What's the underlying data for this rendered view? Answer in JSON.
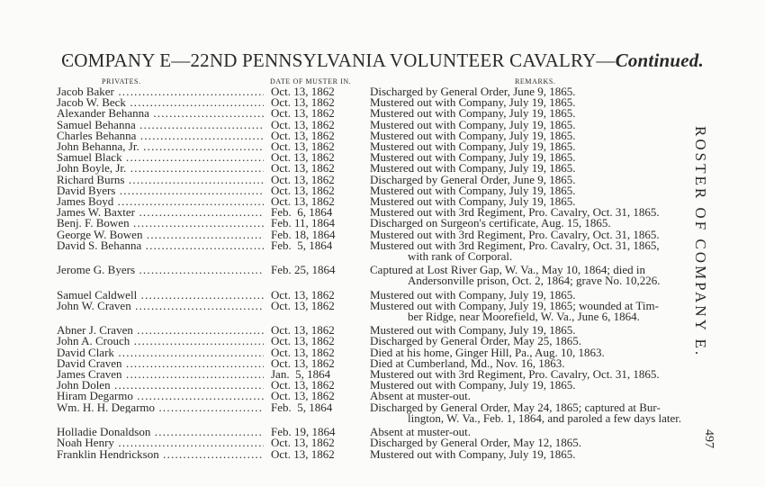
{
  "title": {
    "main": "COMPANY E—22ND PENNSYLVANIA VOLUNTEER CAVALRY—",
    "continued": "Continued."
  },
  "headers": {
    "privates": "PRIVATES.",
    "date": "DATE OF MUSTER IN.",
    "remarks": "REMARKS."
  },
  "side_title": "ROSTER OF COMPANY E.",
  "page_number": "497",
  "rows": [
    {
      "name": "Jacob Baker",
      "date": "Oct. 13, 1862",
      "remarks": [
        "Discharged by General Order, June 9, 1865."
      ]
    },
    {
      "name": "Jacob W. Beck",
      "date": "Oct. 13, 1862",
      "remarks": [
        "Mustered out with Company, July 19, 1865."
      ]
    },
    {
      "name": "Alexander Behanna",
      "date": "Oct. 13, 1862",
      "remarks": [
        "Mustered out with Company, July 19, 1865."
      ]
    },
    {
      "name": "Samuel Behanna",
      "date": "Oct. 13, 1862",
      "remarks": [
        "Mustered out with Company, July 19, 1865."
      ]
    },
    {
      "name": "Charles Behanna",
      "date": "Oct. 13, 1862",
      "remarks": [
        "Mustered out with Company, July 19, 1865."
      ]
    },
    {
      "name": "John Behanna, Jr.",
      "date": "Oct. 13, 1862",
      "remarks": [
        "Mustered out with Company, July 19, 1865."
      ]
    },
    {
      "name": "Samuel Black",
      "date": "Oct. 13, 1862",
      "remarks": [
        "Mustered out with Company, July 19, 1865."
      ]
    },
    {
      "name": "John Boyle, Jr.",
      "date": "Oct. 13, 1862",
      "remarks": [
        "Mustered out with Company, July 19, 1865."
      ]
    },
    {
      "name": "Richard Burns",
      "date": "Oct. 13, 1862",
      "remarks": [
        "Discharged by General Order, June 9, 1865."
      ]
    },
    {
      "name": "David Byers",
      "date": "Oct. 13, 1862",
      "remarks": [
        "Mustered out with Company, July 19, 1865."
      ]
    },
    {
      "name": "James Boyd",
      "date": "Oct. 13, 1862",
      "remarks": [
        "Mustered out with Company, July 19, 1865."
      ]
    },
    {
      "name": "James W. Baxter",
      "date": "Feb.  6, 1864",
      "remarks": [
        "Mustered out with 3rd Regiment, Pro. Cavalry, Oct. 31, 1865."
      ]
    },
    {
      "name": "Benj. F. Bowen",
      "date": "Feb. 11, 1864",
      "remarks": [
        "Discharged on Surgeon's certificate, Aug. 15, 1865."
      ]
    },
    {
      "name": "George W. Bowen",
      "date": "Feb. 18, 1864",
      "remarks": [
        "Mustered out with 3rd Regiment, Pro. Cavalry, Oct. 31, 1865."
      ]
    },
    {
      "name": "David S. Behanna",
      "date": "Feb.  5, 1864",
      "remarks": [
        "Mustered out with 3rd Regiment, Pro. Cavalry, Oct. 31, 1865,",
        "with rank of Corporal."
      ]
    },
    {
      "name": "Jerome G. Byers",
      "date": "Feb. 25, 1864",
      "remarks": [
        "Captured at Lost River Gap, W. Va., May 10, 1864; died in",
        "Andersonville prison, Oct. 2, 1864; grave No. 10,226."
      ]
    },
    {
      "name": "Samuel Caldwell",
      "date": "Oct. 13, 1862",
      "remarks": [
        "Mustered out with Company, July 19, 1865."
      ]
    },
    {
      "name": "John W. Craven",
      "date": "Oct. 13, 1862",
      "remarks": [
        "Mustered out with Company, July 19, 1865; wounded at Tim-",
        "ber Ridge, near Moorefield, W. Va., June 6, 1864."
      ]
    },
    {
      "name": "Abner J. Craven",
      "date": "Oct. 13, 1862",
      "remarks": [
        "Mustered out with Company, July 19, 1865."
      ]
    },
    {
      "name": "John A. Crouch",
      "date": "Oct. 13, 1862",
      "remarks": [
        "Discharged by General Order, May 25, 1865."
      ]
    },
    {
      "name": "David Clark",
      "date": "Oct. 13, 1862",
      "remarks": [
        "Died at his home, Ginger Hill, Pa., Aug. 10, 1863."
      ]
    },
    {
      "name": "David Craven",
      "date": "Oct. 13, 1862",
      "remarks": [
        "Died at Cumberland, Md., Nov. 16, 1863."
      ]
    },
    {
      "name": "James Craven",
      "date": "Jan.  5, 1864",
      "remarks": [
        "Mustered out with 3rd Regiment, Pro. Cavalry, Oct. 31, 1865."
      ]
    },
    {
      "name": "John Dolen",
      "date": "Oct. 13, 1862",
      "remarks": [
        "Mustered out with Company, July 19, 1865."
      ]
    },
    {
      "name": "Hiram Degarmo",
      "date": "Oct. 13, 1862",
      "remarks": [
        "Absent at muster-out."
      ]
    },
    {
      "name": "Wm. H. H. Degarmo",
      "date": "Feb.  5, 1864",
      "remarks": [
        "Discharged by General Order, May 24, 1865; captured at Bur-",
        "lington, W. Va., Feb. 1, 1864, and paroled a few days later."
      ]
    },
    {
      "name": "Holladie Donaldson",
      "date": "Feb. 19, 1864",
      "remarks": [
        "Absent at muster-out."
      ]
    },
    {
      "name": "Noah Henry",
      "date": "Oct. 13, 1862",
      "remarks": [
        "Discharged by General Order, May 12, 1865."
      ]
    },
    {
      "name": "Franklin Hendrickson",
      "date": "Oct. 13, 1862",
      "remarks": [
        "Mustered out with Company, July 19, 1865."
      ]
    }
  ]
}
